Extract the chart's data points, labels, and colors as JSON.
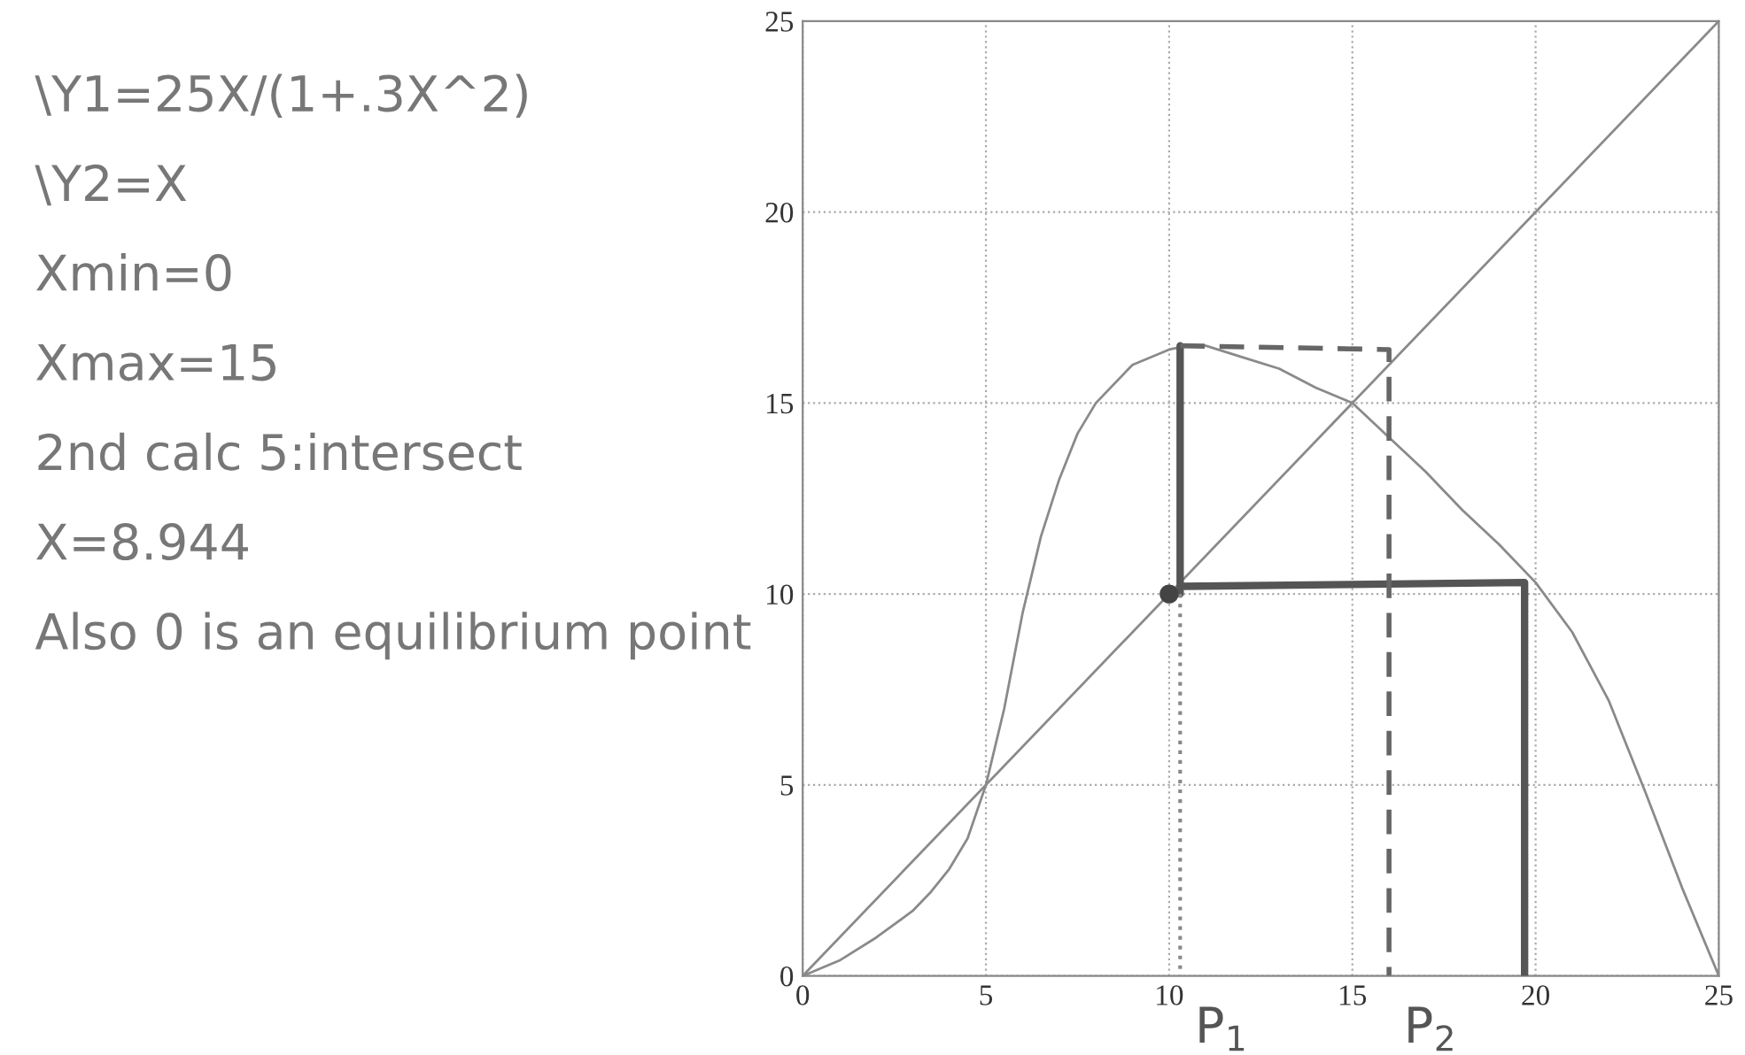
{
  "chart_data": {
    "type": "line",
    "xlim": [
      0,
      25
    ],
    "ylim": [
      0,
      25
    ],
    "xticks": [
      0,
      5,
      10,
      15,
      20,
      25
    ],
    "yticks": [
      0,
      5,
      10,
      15,
      20,
      25
    ],
    "grid": true,
    "line_style": "solid",
    "series": [
      {
        "color": "#8a8a8a",
        "x": [
          0,
          1,
          2,
          3,
          3.5,
          4,
          4.5,
          5,
          5.5,
          6,
          6.5,
          7,
          7.5,
          8,
          9,
          10,
          10.5,
          11,
          12,
          13,
          14,
          15,
          16,
          17,
          18,
          19,
          20,
          21,
          22,
          23,
          24,
          25
        ],
        "values": [
          0,
          0.4,
          1,
          1.7,
          2.2,
          2.8,
          3.6,
          5,
          7,
          9.5,
          11.5,
          13,
          14.2,
          15,
          16,
          16.4,
          16.5,
          16.5,
          16.2,
          15.9,
          15.4,
          15,
          14.1,
          13.2,
          12.2,
          11.3,
          10.3,
          9,
          7.2,
          4.8,
          2.3,
          0
        ]
      },
      {
        "color": "#8a8a8a",
        "x": [
          0,
          25
        ],
        "values": [
          0,
          25
        ]
      },
      {
        "color": "#555555",
        "line_style": "solid",
        "x": [
          10.3,
          10.3,
          10.3,
          19.7,
          19.7
        ],
        "values": [
          16.5,
          10,
          10.2,
          10.3,
          0
        ]
      },
      {
        "color": "#666666",
        "line_style": "dashed",
        "x": [
          10.3,
          16,
          16
        ],
        "values": [
          16.5,
          16.4,
          0
        ]
      },
      {
        "color": "#888888",
        "line_style": "dotted",
        "x": [
          10.3,
          10.3
        ],
        "values": [
          10,
          0
        ]
      },
      {
        "type": "scatter",
        "color": "#444444",
        "marker": "circle",
        "x": [
          10
        ],
        "values": [
          10
        ]
      }
    ],
    "annotations": [
      "\\Y1=25X/(1+.3X^2)",
      "\\Y2=X",
      "Xmin=0",
      "Xmax=15",
      "2nd calc 5:intersect",
      "X=8.944",
      "Also 0 is an equilibrium point",
      {
        "text": "P$_{1}$",
        "x": 10.3,
        "y": 0
      },
      {
        "text": "P$_{2}$",
        "x": 16,
        "y": 0
      }
    ]
  }
}
